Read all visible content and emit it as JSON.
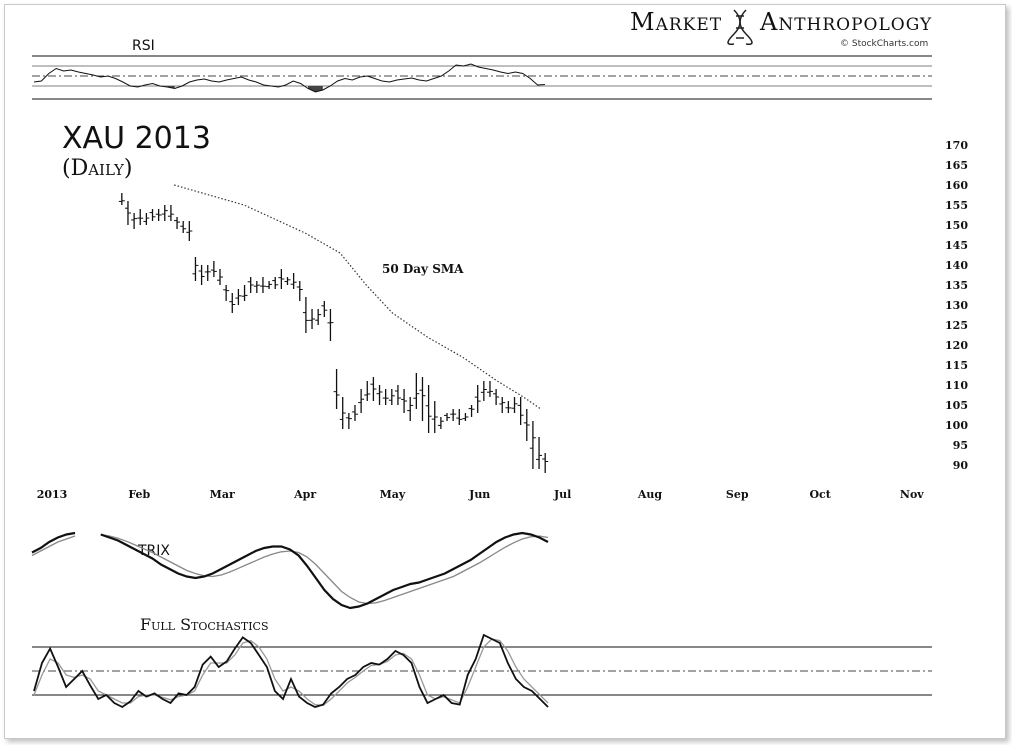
{
  "header": {
    "brand_left": "Market",
    "brand_right": "Anthropology",
    "credit": "© StockCharts.com"
  },
  "rsi_panel": {
    "title": "RSI"
  },
  "trix_panel": {
    "title": "TRIX"
  },
  "stoch_panel": {
    "title": "Full Stochastics"
  },
  "chart_data": {
    "type": "ohlc",
    "title": "XAU 2013",
    "subtitle": "(Daily)",
    "annotation": "50 Day SMA",
    "ylim": [
      88,
      172
    ],
    "yticks": [
      170,
      165,
      160,
      155,
      150,
      145,
      140,
      135,
      130,
      125,
      120,
      115,
      110,
      105,
      100,
      95,
      90
    ],
    "xticks": [
      {
        "label": "2013",
        "day": 0
      },
      {
        "label": "Feb",
        "day": 20
      },
      {
        "label": "Mar",
        "day": 39
      },
      {
        "label": "Apr",
        "day": 58
      },
      {
        "label": "May",
        "day": 78
      },
      {
        "label": "Jun",
        "day": 98
      },
      {
        "label": "Jul",
        "day": 117
      },
      {
        "label": "Aug",
        "day": 137
      },
      {
        "label": "Sep",
        "day": 157
      },
      {
        "label": "Oct",
        "day": 176
      },
      {
        "label": "Nov",
        "day": 197
      }
    ],
    "x_range_days": [
      0,
      203
    ],
    "price_high": [
      158,
      156,
      153,
      154,
      153,
      154,
      154,
      155,
      155,
      152,
      151,
      151,
      142,
      140,
      140,
      141,
      139,
      135,
      133,
      134,
      135,
      137,
      136,
      137,
      136,
      137,
      139,
      137,
      138,
      136,
      132,
      129,
      129,
      131,
      129,
      114,
      107,
      103,
      105,
      109,
      111,
      112,
      110,
      109,
      109,
      110,
      109,
      107,
      113,
      112,
      110,
      106,
      102,
      103,
      104,
      104,
      103,
      105,
      110,
      111,
      111,
      109,
      107,
      106,
      107,
      107,
      104,
      101,
      97,
      93
    ],
    "price_low": [
      155,
      150,
      149,
      150,
      150,
      151,
      151,
      151,
      151,
      149,
      148,
      146,
      136,
      135,
      136,
      137,
      135,
      131,
      128,
      130,
      131,
      133,
      133,
      133,
      134,
      134,
      134,
      135,
      134,
      131,
      123,
      124,
      125,
      127,
      121,
      104,
      99,
      99,
      101,
      103,
      106,
      106,
      105,
      105,
      105,
      105,
      103,
      101,
      104,
      101,
      98,
      98,
      99,
      101,
      101,
      100,
      101,
      102,
      103,
      106,
      107,
      105,
      103,
      103,
      103,
      100,
      96,
      89,
      89,
      88
    ],
    "sma50": [
      {
        "day": 28,
        "value": 160
      },
      {
        "day": 44,
        "value": 155
      },
      {
        "day": 58,
        "value": 148
      },
      {
        "day": 66,
        "value": 143
      },
      {
        "day": 72,
        "value": 135
      },
      {
        "day": 78,
        "value": 128
      },
      {
        "day": 86,
        "value": 122
      },
      {
        "day": 94,
        "value": 117
      },
      {
        "day": 102,
        "value": 111
      },
      {
        "day": 108,
        "value": 107
      },
      {
        "day": 112,
        "value": 104
      }
    ],
    "rsi": {
      "ref_levels": [
        70,
        50,
        30
      ],
      "values": [
        38,
        40,
        55,
        65,
        60,
        62,
        58,
        55,
        52,
        48,
        50,
        45,
        38,
        30,
        28,
        32,
        35,
        30,
        28,
        25,
        30,
        38,
        42,
        44,
        40,
        38,
        42,
        45,
        48,
        42,
        38,
        32,
        30,
        28,
        32,
        40,
        35,
        25,
        18,
        22,
        30,
        40,
        45,
        42,
        48,
        50,
        45,
        40,
        38,
        42,
        44,
        46,
        42,
        40,
        45,
        50,
        60,
        72,
        70,
        74,
        68,
        65,
        62,
        58,
        55,
        58,
        55,
        45,
        32,
        33
      ]
    },
    "trix": {
      "trix_line": [
        0.5,
        0.8,
        1.2,
        1.5,
        1.7,
        1.8,
        1.85,
        1.8,
        1.7,
        1.5,
        1.3,
        1.0,
        0.7,
        0.4,
        0.1,
        -0.3,
        -0.6,
        -0.9,
        -1.1,
        -1.2,
        -1.1,
        -0.9,
        -0.6,
        -0.3,
        0.0,
        0.3,
        0.6,
        0.8,
        0.9,
        0.9,
        0.7,
        0.3,
        -0.4,
        -1.2,
        -2.0,
        -2.6,
        -3.0,
        -3.2,
        -3.1,
        -2.9,
        -2.6,
        -2.3,
        -2.0,
        -1.8,
        -1.6,
        -1.5,
        -1.3,
        -1.1,
        -0.9,
        -0.6,
        -0.3,
        0.0,
        0.4,
        0.8,
        1.2,
        1.5,
        1.7,
        1.8,
        1.7,
        1.5,
        1.2
      ],
      "signal_line": [
        0.3,
        0.6,
        0.9,
        1.2,
        1.4,
        1.6,
        1.7,
        1.75,
        1.7,
        1.6,
        1.45,
        1.25,
        1.0,
        0.75,
        0.5,
        0.2,
        -0.1,
        -0.4,
        -0.7,
        -0.9,
        -1.05,
        -1.1,
        -1.0,
        -0.8,
        -0.55,
        -0.3,
        -0.05,
        0.2,
        0.4,
        0.55,
        0.6,
        0.5,
        0.2,
        -0.3,
        -0.9,
        -1.5,
        -2.1,
        -2.5,
        -2.8,
        -2.9,
        -2.85,
        -2.7,
        -2.5,
        -2.3,
        -2.1,
        -1.9,
        -1.7,
        -1.5,
        -1.3,
        -1.1,
        -0.8,
        -0.5,
        -0.2,
        0.15,
        0.5,
        0.85,
        1.15,
        1.4,
        1.55,
        1.6,
        1.5
      ]
    },
    "stochastics": {
      "ref_levels": [
        80,
        50,
        20
      ],
      "k_line": [
        25,
        60,
        78,
        55,
        30,
        40,
        50,
        32,
        15,
        20,
        10,
        5,
        12,
        25,
        18,
        22,
        15,
        10,
        22,
        20,
        30,
        58,
        68,
        55,
        62,
        78,
        92,
        85,
        70,
        55,
        25,
        15,
        40,
        18,
        10,
        5,
        8,
        22,
        30,
        40,
        45,
        55,
        60,
        58,
        65,
        75,
        70,
        60,
        30,
        10,
        15,
        20,
        10,
        8,
        45,
        65,
        95,
        90,
        85,
        60,
        40,
        30,
        25,
        15,
        5
      ],
      "d_line": [
        20,
        45,
        65,
        60,
        45,
        42,
        45,
        40,
        25,
        20,
        15,
        10,
        10,
        18,
        20,
        20,
        17,
        14,
        18,
        20,
        25,
        45,
        60,
        60,
        60,
        70,
        85,
        88,
        80,
        65,
        40,
        25,
        30,
        25,
        15,
        8,
        7,
        15,
        25,
        35,
        42,
        50,
        57,
        58,
        62,
        70,
        72,
        65,
        45,
        20,
        15,
        18,
        14,
        10,
        30,
        55,
        80,
        90,
        88,
        75,
        55,
        40,
        30,
        20,
        10
      ]
    }
  }
}
